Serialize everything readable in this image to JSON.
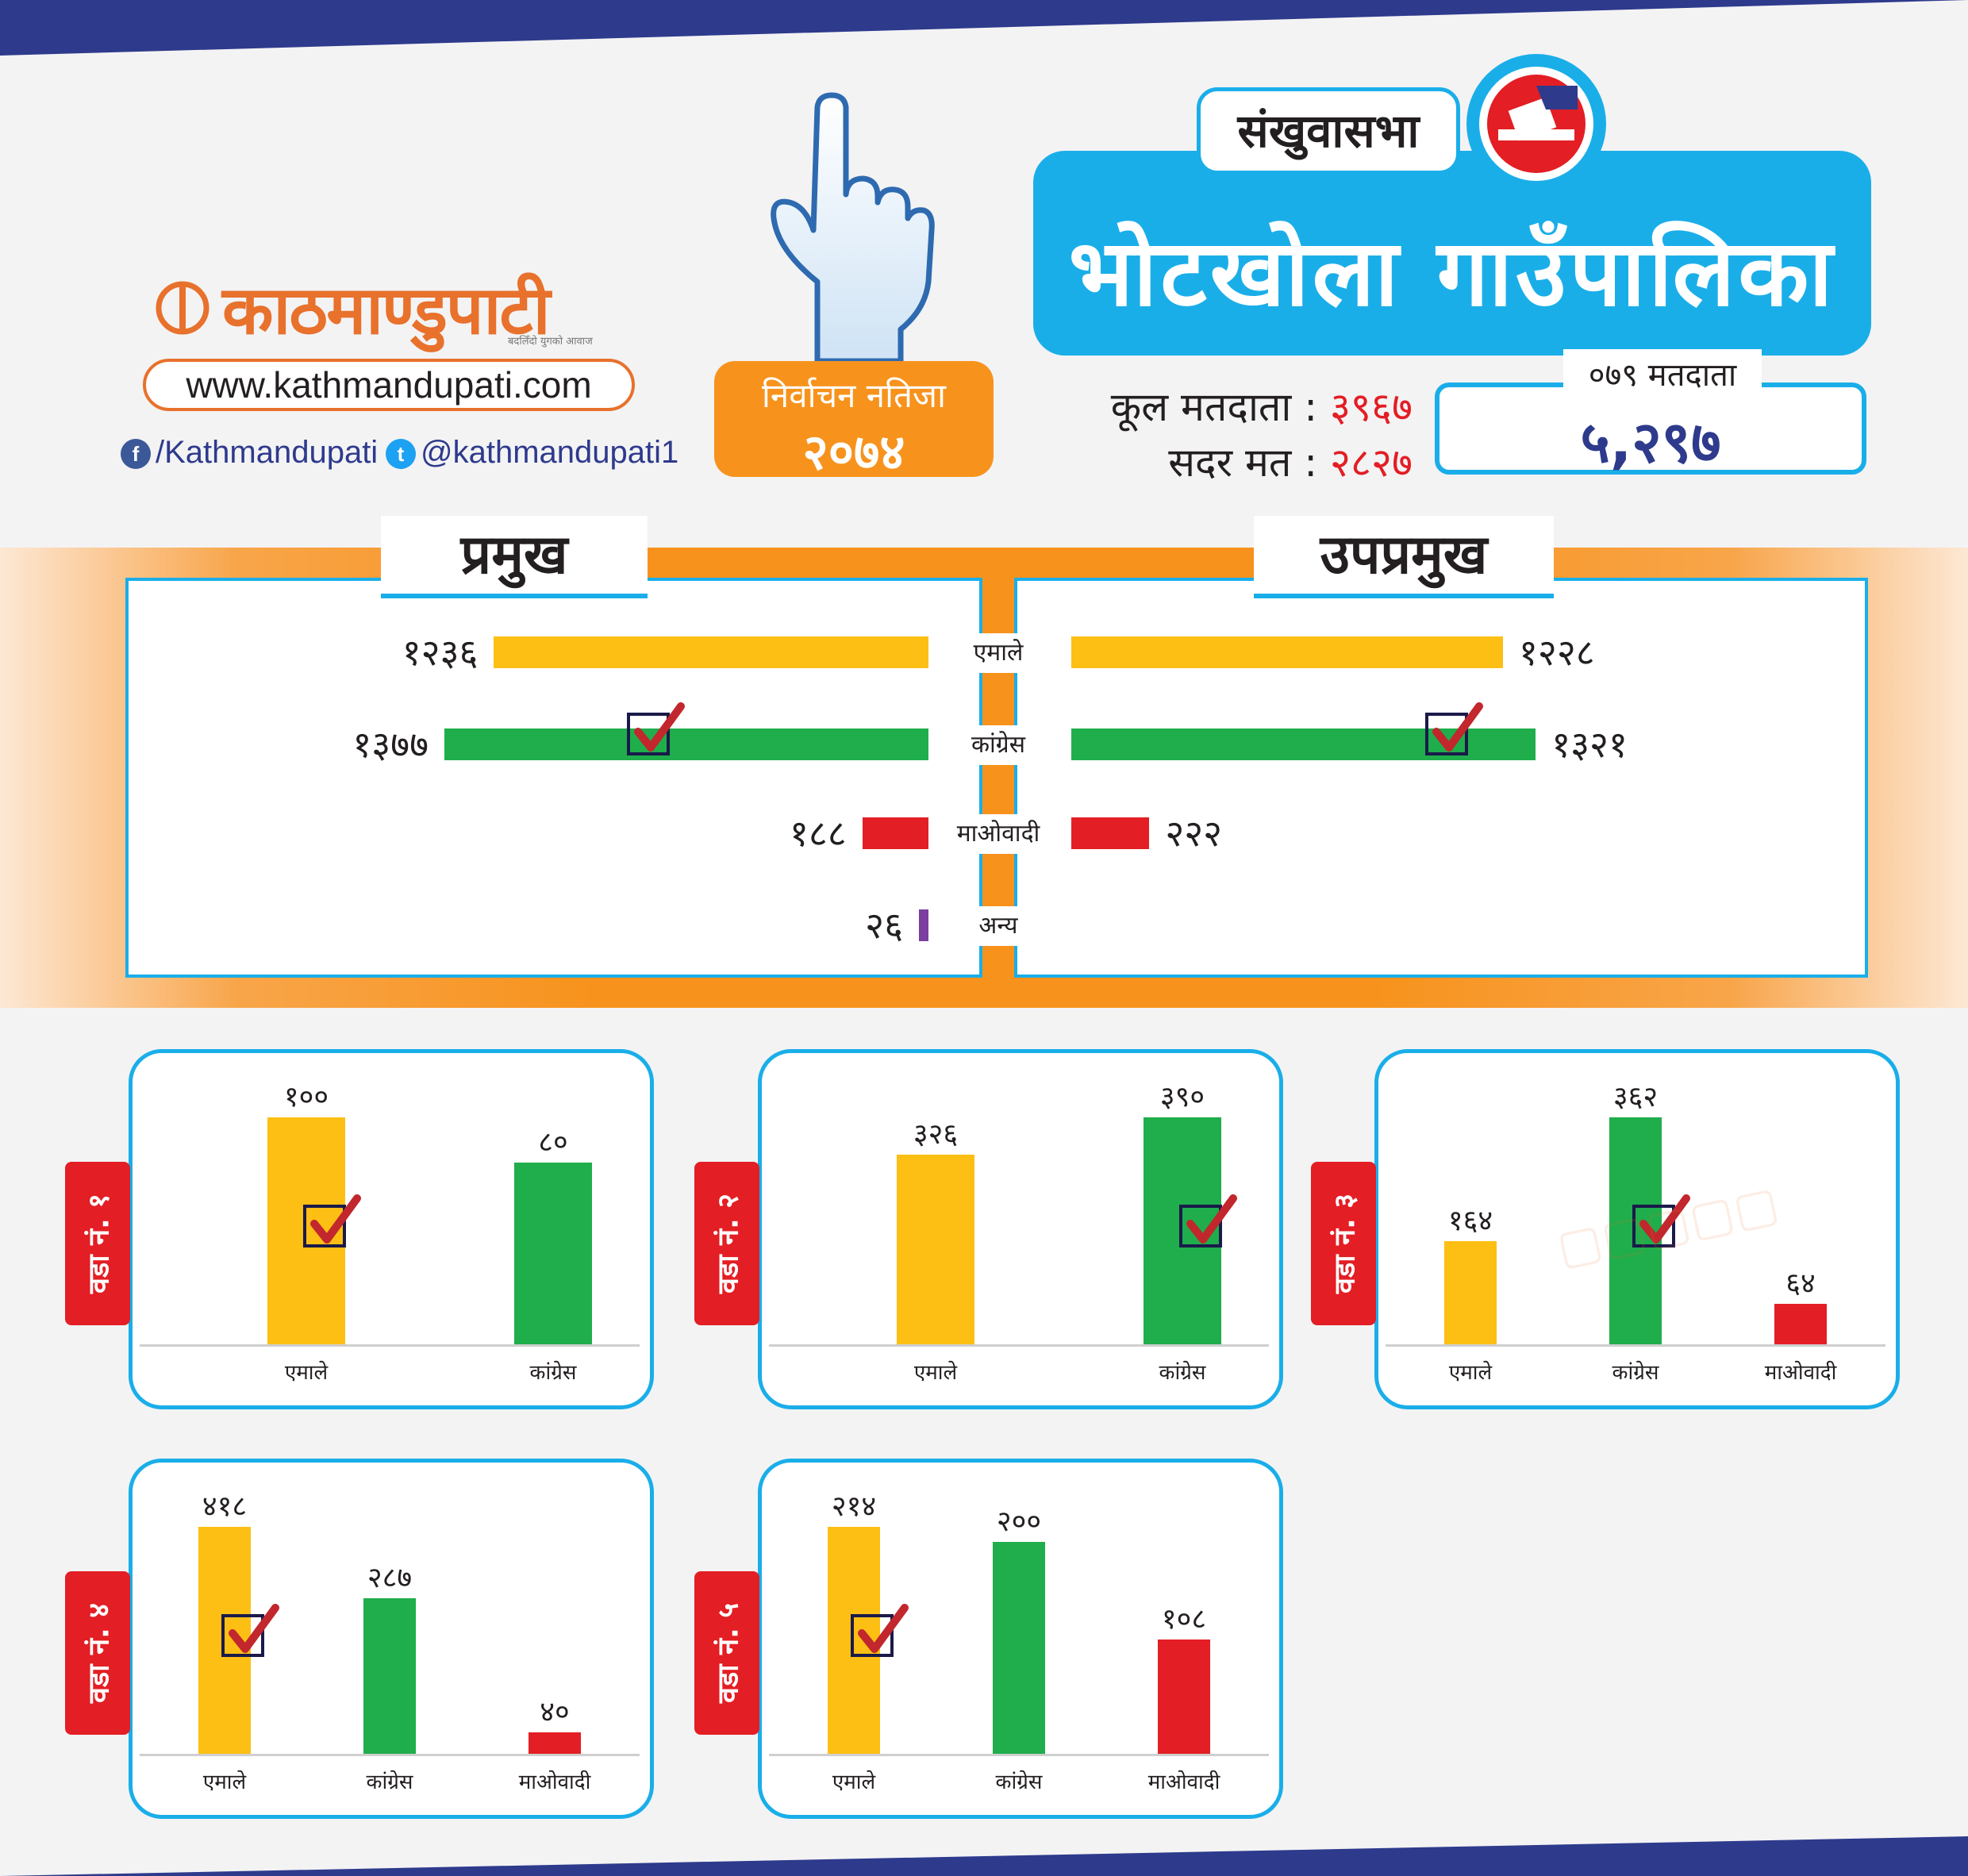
{
  "header": {
    "brand": "काठमाण्डुपाटी",
    "brand_tag": "बदलिँदो युगको आवाज",
    "website": "www.kathmandupati.com",
    "facebook": "/Kathmandupati",
    "twitter": "@kathmandupati1",
    "result_label": "निर्वाचन नतिजा",
    "result_year": "२०७४",
    "district": "संखुवासभा",
    "municipality": "भोटखोला गाउँपालिका",
    "total_voters_label": "कूल मतदाता :",
    "total_voters": "३९६७",
    "valid_votes_label": "सदर मत :",
    "valid_votes": "२८२७",
    "voters_079_label": "०७९ मतदाता",
    "voters_079": "५,२९७"
  },
  "colors": {
    "emale": "#fdbf14",
    "congress": "#1fae4b",
    "maoist": "#e31e24",
    "other": "#7a3fa0",
    "accent": "#1aaee9",
    "orange": "#f7931d",
    "navy": "#2e3a8c"
  },
  "chart_data": [
    {
      "type": "bar",
      "orientation": "horizontal",
      "title": "प्रमुख",
      "categories": [
        "एमाले",
        "कांग्रेस",
        "माओवादी",
        "अन्य"
      ],
      "values": [
        1236,
        1377,
        188,
        26
      ],
      "labels": [
        "१२३६",
        "१३७७",
        "१८८",
        "२६"
      ],
      "winner": "कांग्रेस"
    },
    {
      "type": "bar",
      "orientation": "horizontal",
      "title": "उपप्रमुख",
      "categories": [
        "एमाले",
        "कांग्रेस",
        "माओवादी"
      ],
      "values": [
        1228,
        1321,
        222
      ],
      "labels": [
        "१२२८",
        "१३२१",
        "२२२"
      ],
      "winner": "कांग्रेस"
    },
    {
      "type": "bar",
      "title": "वडा नं. १",
      "categories": [
        "एमाले",
        "कांग्रेस"
      ],
      "values": [
        100,
        80
      ],
      "labels": [
        "१००",
        "८०"
      ],
      "winner": 0
    },
    {
      "type": "bar",
      "title": "वडा नं. २",
      "categories": [
        "एमाले",
        "कांग्रेस"
      ],
      "values": [
        326,
        390
      ],
      "labels": [
        "३२६",
        "३९०"
      ],
      "winner": 1
    },
    {
      "type": "bar",
      "title": "वडा नं. ३",
      "categories": [
        "एमाले",
        "कांग्रेस",
        "माओवादी"
      ],
      "values": [
        164,
        362,
        64
      ],
      "labels": [
        "१६४",
        "३६२",
        "६४"
      ],
      "winner": 1
    },
    {
      "type": "bar",
      "title": "वडा नं. ४",
      "categories": [
        "एमाले",
        "कांग्रेस",
        "माओवादी"
      ],
      "values": [
        418,
        287,
        40
      ],
      "labels": [
        "४१८",
        "२८७",
        "४०"
      ],
      "winner": 0
    },
    {
      "type": "bar",
      "title": "वडा नं. ५",
      "categories": [
        "एमाले",
        "कांग्रेस",
        "माओवादी"
      ],
      "values": [
        214,
        200,
        108
      ],
      "labels": [
        "२१४",
        "२००",
        "१०८"
      ],
      "winner": 0
    }
  ]
}
